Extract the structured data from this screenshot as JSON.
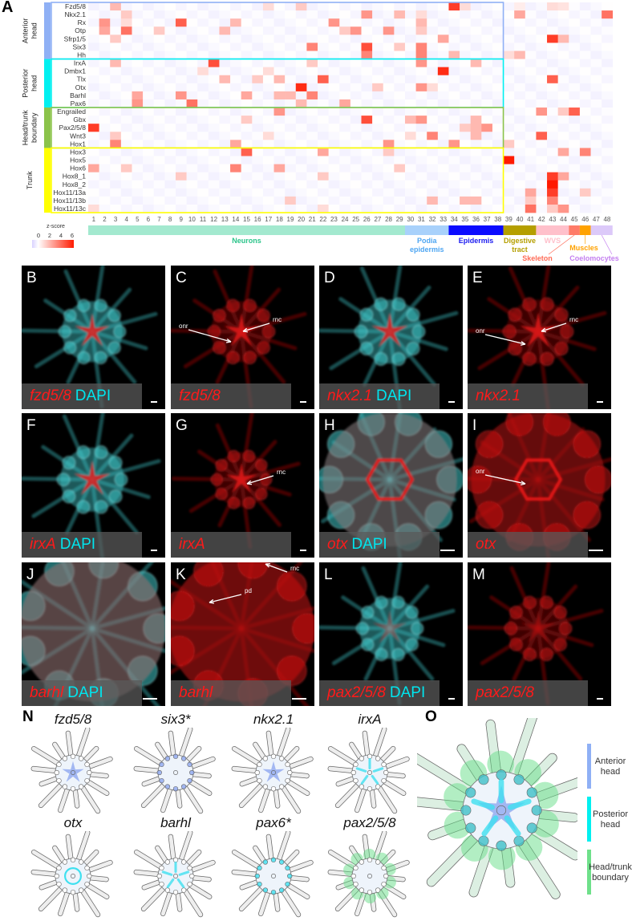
{
  "panel_letters": {
    "A": "A",
    "N": "N",
    "O": "O"
  },
  "chart_data": {
    "type": "heatmap",
    "legend_title": "z-score",
    "legend_ticks": [
      "0",
      "2",
      "4",
      "6"
    ],
    "zlim": [
      -1,
      6.5
    ],
    "colors": {
      "low": "#d9d2ff",
      "mid": "#ffffff",
      "high": "#ff1a00"
    },
    "default_z": -0.3,
    "columns": [
      "1",
      "2",
      "3",
      "4",
      "5",
      "6",
      "7",
      "8",
      "9",
      "10",
      "11",
      "12",
      "13",
      "14",
      "15",
      "16",
      "17",
      "18",
      "19",
      "20",
      "21",
      "22",
      "23",
      "24",
      "25",
      "26",
      "27",
      "28",
      "29",
      "30",
      "31",
      "32",
      "33",
      "34",
      "35",
      "36",
      "37",
      "38",
      "39",
      "40",
      "41",
      "42",
      "43",
      "44",
      "45",
      "46",
      "47",
      "48"
    ],
    "groups": [
      {
        "name": "Anterior head",
        "lines": [
          "Anterior",
          "head"
        ],
        "color": "#8fb0f5",
        "genes": [
          "Fzd5/8",
          "Nkx2.1",
          "Rx",
          "Otp",
          "Sfrp1/5",
          "Six3",
          "Hh"
        ]
      },
      {
        "name": "Posterior head",
        "lines": [
          "Posterior",
          "head"
        ],
        "color": "#00f0f0",
        "genes": [
          "IrxA",
          "Dmbx1",
          "Tlx",
          "Otx",
          "Barhl",
          "Pax6"
        ]
      },
      {
        "name": "Head/trunk boundary",
        "lines": [
          "Head/trunk",
          "boundary"
        ],
        "color": "#8bc34a",
        "genes": [
          "Engrailed",
          "Gbx",
          "Pax2/5/8",
          "Wnt3",
          "Hox1"
        ]
      },
      {
        "name": "Trunk",
        "lines": [
          "Trunk"
        ],
        "color": "#ffff00",
        "genes": [
          "Hox3",
          "Hox5",
          "Hox6",
          "Hox8_1",
          "Hox8_2",
          "Hox11/13a",
          "Hox11/13b",
          "Hox11/13c"
        ]
      }
    ],
    "cells": {
      "Fzd5/8": {
        "3": 2,
        "17": 1,
        "20": 1.5,
        "34": 5.5,
        "35": 1,
        "40": 0.5,
        "43": 1,
        "44": 0.8
      },
      "Nkx2.1": {
        "4": 1.5,
        "26": 3,
        "29": 2,
        "31": 1,
        "40": 2.5,
        "48": 4
      },
      "Rx": {
        "2": 3,
        "4": 1,
        "9": 4.5,
        "14": 2,
        "23": 3,
        "31": 2
      },
      "Otp": {
        "2": 2.5,
        "4": 4,
        "7": 1.5,
        "13": 2,
        "24": 1.5,
        "25": 3,
        "28": 3,
        "31": 1.5
      },
      "Sfrp1/5": {
        "3": 1.5,
        "33": 2.5,
        "43": 5.5,
        "44": 2
      },
      "Six3": {
        "21": 3.5,
        "26": 5,
        "29": 1.5,
        "31": 3.5
      },
      "Hh": {
        "26": 3.5,
        "31": 3.5,
        "34": 2,
        "39": 1,
        "40": 2
      },
      "IrxA": {
        "3": 2,
        "12": 5,
        "21": 1.5,
        "31": 3,
        "36": 2
      },
      "Dmbx1": {
        "11": 1,
        "17": 1,
        "33": 6
      },
      "Tlx": {
        "13": 2,
        "16": 1.5,
        "18": 2,
        "22": 4.5,
        "43": 4.5
      },
      "Otx": {
        "20": 6,
        "27": 1.5,
        "31": 3,
        "32": 1
      },
      "Barhl": {
        "5": 2.5,
        "9": 3,
        "15": 2.5,
        "18": 2,
        "19": 2,
        "21": 3.5
      },
      "Pax6": {
        "5": 3,
        "10": 4,
        "20": 2,
        "24": 2.5
      },
      "Engrailed": {
        "18": 3,
        "42": 3,
        "44": 1.5,
        "45": 4.5
      },
      "Gbx": {
        "15": 1.5,
        "26": 5,
        "30": 2,
        "31": 3,
        "36": 2
      },
      "Pax2/5/8": {
        "1": 5.5,
        "35": 1.5,
        "36": 2,
        "37": 3
      },
      "Wnt3": {
        "3": 1.5,
        "17": 1,
        "30": 1,
        "32": 3.5,
        "36": 2,
        "42": 4.5
      },
      "Hox1": {
        "3": 3.5,
        "14": 2.5,
        "28": 3,
        "34": 3,
        "39": 1.5
      },
      "Hox3": {
        "15": 4.5,
        "22": 2.5,
        "28": 1.5,
        "44": 2.5,
        "46": 3.5
      },
      "Hox5": {
        "39": 7
      },
      "Hox6": {
        "1": 2.5,
        "4": 1.5,
        "14": 3.5,
        "18": 2.5,
        "29": 1.5
      },
      "Hox8_1": {
        "9": 1.5,
        "22": 1.5,
        "43": 5.5,
        "44": 2.5
      },
      "Hox8_2": {
        "43": 6.5
      },
      "Hox11/13a": {
        "41": 2.5,
        "43": 5.5,
        "46": 1.5
      },
      "Hox11/13b": {
        "19": 1.5,
        "32": 2,
        "35": 2,
        "36": 2,
        "41": 1.5,
        "43": 3.5
      },
      "Hox11/13c": {
        "1": 1,
        "22": 1,
        "41": 4,
        "43": 1.5,
        "44": 3
      }
    },
    "cell_types": [
      {
        "label": "Neurons",
        "lines": [
          "Neurons"
        ],
        "from": 1,
        "to": 29,
        "color": "#a3e9cf",
        "text_color": "#2bc48a"
      },
      {
        "label": "Podia epidermis",
        "lines": [
          "Podia",
          "epidermis"
        ],
        "from": 30,
        "to": 33,
        "color": "#a8d1fb",
        "text_color": "#4ea6f2"
      },
      {
        "label": "Epidermis",
        "lines": [
          "Epidermis"
        ],
        "from": 34,
        "to": 38,
        "color": "#0a0aff",
        "text_color": "#1a1af0"
      },
      {
        "label": "Digestive tract",
        "lines": [
          "Digestive",
          "tract"
        ],
        "from": 39,
        "to": 41,
        "color": "#b59f00",
        "text_color": "#b59f00"
      },
      {
        "label": "WVS",
        "lines": [
          "WVS"
        ],
        "from": 42,
        "to": 44,
        "color": "#ffc0cb",
        "text_color": "#ffc0cb"
      },
      {
        "label": "Skeleton",
        "lines": [
          "Skeleton"
        ],
        "from": 45,
        "to": 45,
        "color": "#ff7b68",
        "text_color": "#ff6a55"
      },
      {
        "label": "Muscles",
        "lines": [
          "Muscles"
        ],
        "from": 46,
        "to": 46,
        "color": "#ffa200",
        "text_color": "#ffa200"
      },
      {
        "label": "Coelomocytes",
        "lines": [
          "Coelomocytes"
        ],
        "from": 47,
        "to": 48,
        "color": "#dcc9f9",
        "text_color": "#c47ff0"
      }
    ]
  },
  "micrographs": [
    {
      "letter": "B",
      "gene": "fzd5/8",
      "dapi": "DAPI",
      "annotations": []
    },
    {
      "letter": "C",
      "gene": "fzd5/8",
      "dapi": "",
      "annotations": [
        "onr",
        "rnc"
      ]
    },
    {
      "letter": "D",
      "gene": "nkx2.1",
      "dapi": "DAPI",
      "annotations": []
    },
    {
      "letter": "E",
      "gene": "nkx2.1",
      "dapi": "",
      "annotations": [
        "onr",
        "rnc"
      ]
    },
    {
      "letter": "F",
      "gene": "irxA",
      "dapi": "DAPI",
      "annotations": []
    },
    {
      "letter": "G",
      "gene": "irxA",
      "dapi": "",
      "annotations": [
        "rnc"
      ]
    },
    {
      "letter": "H",
      "gene": "otx",
      "dapi": "DAPI",
      "annotations": []
    },
    {
      "letter": "I",
      "gene": "otx",
      "dapi": "",
      "annotations": [
        "onr"
      ]
    },
    {
      "letter": "J",
      "gene": "barhl",
      "dapi": "DAPI",
      "annotations": []
    },
    {
      "letter": "K",
      "gene": "barhl",
      "dapi": "",
      "annotations": [
        "rnc",
        "pd"
      ]
    },
    {
      "letter": "L",
      "gene": "pax2/5/8",
      "dapi": "DAPI",
      "annotations": []
    },
    {
      "letter": "M",
      "gene": "pax2/5/8",
      "dapi": "",
      "annotations": []
    }
  ],
  "schematics": [
    {
      "title": "fzd5/8",
      "region": "anterior",
      "color": "#8fa8f0"
    },
    {
      "title": "six3*",
      "region": "anterior-podia",
      "color": "#8fa8f0"
    },
    {
      "title": "nkx2.1",
      "region": "anterior",
      "color": "#8fa8f0"
    },
    {
      "title": "irxA",
      "region": "posterior",
      "color": "#3fe0f0"
    },
    {
      "title": "otx",
      "region": "posterior-ring",
      "color": "#3fe0f0"
    },
    {
      "title": "barhl",
      "region": "posterior",
      "color": "#3fe0f0"
    },
    {
      "title": "pax6*",
      "region": "posterior-podia",
      "color": "#3fe0f0"
    },
    {
      "title": "pax2/5/8",
      "region": "boundary",
      "color": "#66dd88"
    }
  ],
  "summary_legend": [
    {
      "lines": [
        "Anterior",
        "head"
      ],
      "color": "#8fb0f5"
    },
    {
      "lines": [
        "Posterior",
        "head"
      ],
      "color": "#00f0f0"
    },
    {
      "lines": [
        "Head/trunk",
        "boundary"
      ],
      "color": "#6fe08a"
    }
  ]
}
